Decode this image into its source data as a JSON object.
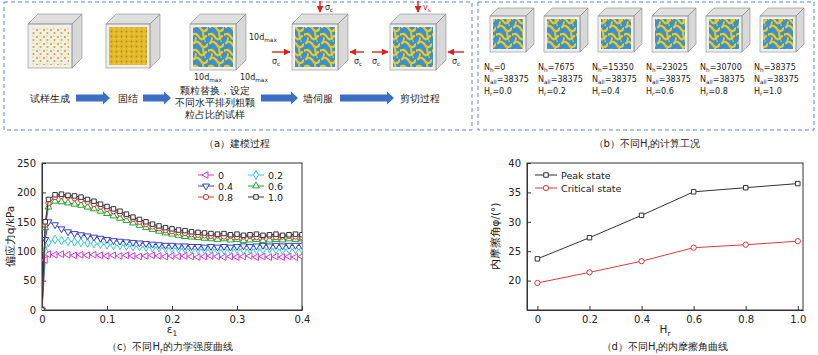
{
  "chart_data": [
    {
      "type": "line",
      "caption": [
        {
          "text": "（c）不同H"
        },
        {
          "sub": "r"
        },
        {
          "text": "的力学强度曲线"
        }
      ],
      "x_label": [
        {
          "text": "ε"
        },
        {
          "sub": "1"
        }
      ],
      "y_label": "偏应力q/kPa",
      "x": [
        0,
        0.005,
        0.01,
        0.02,
        0.03,
        0.04,
        0.05,
        0.06,
        0.07,
        0.08,
        0.09,
        0.1,
        0.11,
        0.12,
        0.13,
        0.14,
        0.15,
        0.16,
        0.17,
        0.18,
        0.19,
        0.2,
        0.21,
        0.22,
        0.23,
        0.24,
        0.25,
        0.26,
        0.27,
        0.28,
        0.29,
        0.3,
        0.31,
        0.32,
        0.33,
        0.34,
        0.35,
        0.36,
        0.37,
        0.38,
        0.39,
        0.4
      ],
      "xlim": [
        0,
        0.4
      ],
      "xticks": [
        0,
        0.1,
        0.2,
        0.3,
        0.4
      ],
      "ylim": [
        0,
        250
      ],
      "yticks": [
        0,
        50,
        100,
        150,
        200,
        250
      ],
      "grid": false,
      "legend": "upper right",
      "series": [
        {
          "name": "0",
          "color": "#d63fd6",
          "marker": "triangle-left",
          "values": [
            0,
            85,
            95,
            94,
            95,
            94,
            93,
            94,
            93,
            94,
            93,
            92,
            93,
            92,
            93,
            92,
            91,
            92,
            93,
            92,
            91,
            92,
            91,
            92,
            91,
            90,
            91,
            92,
            91,
            90,
            91,
            90,
            91,
            92,
            90,
            91,
            90,
            91,
            90,
            91,
            90,
            91
          ]
        },
        {
          "name": "0.2",
          "color": "#35c8d8",
          "marker": "diamond",
          "values": [
            0,
            100,
            115,
            120,
            118,
            117,
            116,
            115,
            114,
            113,
            112,
            111,
            110,
            110,
            109,
            108,
            108,
            107,
            106,
            106,
            105,
            105,
            104,
            104,
            103,
            103,
            102,
            103,
            102,
            102,
            102,
            103,
            102,
            103,
            102,
            103,
            104,
            103,
            102,
            103,
            103,
            103
          ]
        },
        {
          "name": "0.4",
          "color": "#3340c8",
          "marker": "triangle-down",
          "values": [
            0,
            120,
            150,
            145,
            138,
            133,
            130,
            128,
            126,
            124,
            122,
            120,
            118,
            117,
            116,
            115,
            114,
            113,
            112,
            111,
            110,
            110,
            109,
            109,
            108,
            108,
            107,
            108,
            107,
            108,
            107,
            108,
            109,
            108,
            109,
            110,
            109,
            110,
            109,
            110,
            110,
            110
          ]
        },
        {
          "name": "0.6",
          "color": "#2aa02a",
          "marker": "triangle-up",
          "values": [
            0,
            140,
            175,
            185,
            184,
            182,
            180,
            178,
            175,
            172,
            168,
            164,
            160,
            156,
            152,
            148,
            144,
            140,
            137,
            134,
            131,
            129,
            127,
            125,
            124,
            123,
            122,
            121,
            120,
            121,
            119,
            120,
            118,
            119,
            120,
            118,
            119,
            120,
            119,
            121,
            120,
            121
          ]
        },
        {
          "name": "0.8",
          "color": "#e03a3a",
          "marker": "circle",
          "values": [
            0,
            145,
            182,
            192,
            194,
            193,
            190,
            187,
            184,
            180,
            176,
            172,
            168,
            164,
            160,
            155,
            150,
            146,
            142,
            139,
            136,
            134,
            132,
            131,
            129,
            128,
            127,
            126,
            127,
            125,
            126,
            124,
            125,
            126,
            124,
            125,
            126,
            124,
            125,
            126,
            125,
            124
          ]
        },
        {
          "name": "1.0",
          "color": "#333333",
          "marker": "square",
          "values": [
            0,
            150,
            188,
            196,
            197,
            195,
            194,
            192,
            188,
            185,
            180,
            176,
            172,
            168,
            163,
            158,
            154,
            150,
            146,
            143,
            140,
            138,
            136,
            135,
            133,
            132,
            131,
            130,
            129,
            130,
            128,
            129,
            127,
            128,
            129,
            127,
            128,
            129,
            127,
            128,
            129,
            128
          ]
        }
      ]
    },
    {
      "type": "line",
      "caption": [
        {
          "text": "（d）不同H"
        },
        {
          "sub": "r"
        },
        {
          "text": "的内摩擦角曲线"
        }
      ],
      "x_label": [
        {
          "text": "H"
        },
        {
          "sub": "r"
        }
      ],
      "y_label": "内摩擦角φ/(°)",
      "x": [
        0,
        0.2,
        0.4,
        0.6,
        0.8,
        1.0
      ],
      "xlim": [
        -0.04,
        1.02
      ],
      "xticks": [
        0,
        0.2,
        0.4,
        0.6,
        0.8,
        {
          "value": 1.0,
          "label": "1.0"
        }
      ],
      "ylim": [
        15,
        40
      ],
      "yticks": [
        20,
        25,
        30,
        35,
        40
      ],
      "grid": false,
      "legend": "upper left",
      "series": [
        {
          "name": "Peak state",
          "color": "#333333",
          "marker": "square",
          "values": [
            23.7,
            27.3,
            31.1,
            35.1,
            35.8,
            36.5
          ]
        },
        {
          "name": "Critical state",
          "color": "#e03a3a",
          "marker": "circle",
          "values": [
            19.6,
            21.4,
            23.3,
            25.6,
            26.1,
            26.7
          ]
        }
      ]
    }
  ],
  "panel_a": {
    "caption": [
      {
        "text": "（a）建模过程"
      }
    ],
    "steps": [
      {
        "lines": [
          "试样生成"
        ]
      },
      {
        "lines": [
          "固结"
        ]
      },
      {
        "lines": [
          "颗粒替换，设定",
          "不同水平排列粗颗",
          "粒占比的试样"
        ]
      },
      {
        "lines": [
          "墙伺服"
        ]
      },
      {
        "lines": [
          "剪切过程"
        ]
      }
    ],
    "dimension_label": [
      {
        "text": "10d"
      },
      {
        "sub": "max"
      }
    ],
    "force_label": [
      {
        "text": "σ"
      },
      {
        "sub": "c"
      }
    ],
    "velocity_label": [
      {
        "text": "v"
      },
      {
        "sub": "s"
      }
    ]
  },
  "panel_b": {
    "caption": [
      {
        "text": "（b）不同H"
      },
      {
        "sub": "r"
      },
      {
        "text": "的计算工况"
      }
    ],
    "cases": [
      {
        "lines": [
          [
            {
              "text": "N"
            },
            {
              "sub": "h"
            },
            {
              "text": "=0"
            }
          ],
          [
            {
              "text": "N"
            },
            {
              "sub": "all"
            },
            {
              "text": "=38375"
            }
          ],
          [
            {
              "text": "H"
            },
            {
              "sub": "r"
            },
            {
              "text": "=0.0"
            }
          ]
        ]
      },
      {
        "lines": [
          [
            {
              "text": "N"
            },
            {
              "sub": "h"
            },
            {
              "text": "=7675"
            }
          ],
          [
            {
              "text": "N"
            },
            {
              "sub": "all"
            },
            {
              "text": "=38375"
            }
          ],
          [
            {
              "text": "H"
            },
            {
              "sub": "r"
            },
            {
              "text": "=0.2"
            }
          ]
        ]
      },
      {
        "lines": [
          [
            {
              "text": "N"
            },
            {
              "sub": "h"
            },
            {
              "text": "=15350"
            }
          ],
          [
            {
              "text": "N"
            },
            {
              "sub": "all"
            },
            {
              "text": "=38375"
            }
          ],
          [
            {
              "text": "H"
            },
            {
              "sub": "r"
            },
            {
              "text": "=0.4"
            }
          ]
        ]
      },
      {
        "lines": [
          [
            {
              "text": "N"
            },
            {
              "sub": "h"
            },
            {
              "text": "=23025"
            }
          ],
          [
            {
              "text": "N"
            },
            {
              "sub": "all"
            },
            {
              "text": "=38375"
            }
          ],
          [
            {
              "text": "H"
            },
            {
              "sub": "r"
            },
            {
              "text": "=0.6"
            }
          ]
        ]
      },
      {
        "lines": [
          [
            {
              "text": "N"
            },
            {
              "sub": "h"
            },
            {
              "text": "=30700"
            }
          ],
          [
            {
              "text": "N"
            },
            {
              "sub": "all"
            },
            {
              "text": "=38375"
            }
          ],
          [
            {
              "text": "H"
            },
            {
              "sub": "r"
            },
            {
              "text": "=0.8"
            }
          ]
        ]
      },
      {
        "lines": [
          [
            {
              "text": "N"
            },
            {
              "sub": "h"
            },
            {
              "text": "=38375"
            }
          ],
          [
            {
              "text": "N"
            },
            {
              "sub": "all"
            },
            {
              "text": "=38375"
            }
          ],
          [
            {
              "text": "H"
            },
            {
              "sub": "r"
            },
            {
              "text": "=1.0"
            }
          ]
        ]
      }
    ]
  }
}
